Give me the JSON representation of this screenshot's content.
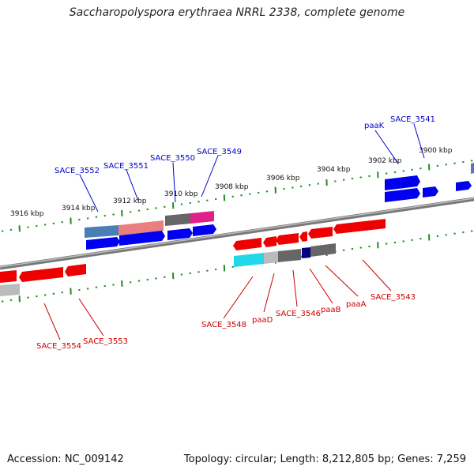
{
  "title": "Saccharopolyspora erythraea NRRL 2338, complete genome",
  "accession": "Accession: NC_009142",
  "summary": "Topology: circular; Length: 8,212,805 bp; Genes: 7,259",
  "scale_ticks": [
    "3916 kbp",
    "3914 kbp",
    "3912 kbp",
    "3910 kbp",
    "3908 kbp",
    "3906 kbp",
    "3904 kbp",
    "3902 kbp",
    "3900 kbp"
  ],
  "upper_labels": [
    "SACE_3552",
    "SACE_3551",
    "SACE_3550",
    "SACE_3549",
    "paaK",
    "SACE_3541"
  ],
  "lower_labels": [
    "SACE_3554",
    "SACE_3553",
    "SACE_3548",
    "paaD",
    "SACE_3546",
    "paaB",
    "paaA",
    "SACE_3543"
  ],
  "colors": {
    "forward_gene": "#0000ee",
    "reverse_gene": "#ee0000",
    "forward_label": "#0000cc",
    "reverse_label": "#cc0000",
    "tick": "#228b22",
    "backbone": "#888888"
  }
}
